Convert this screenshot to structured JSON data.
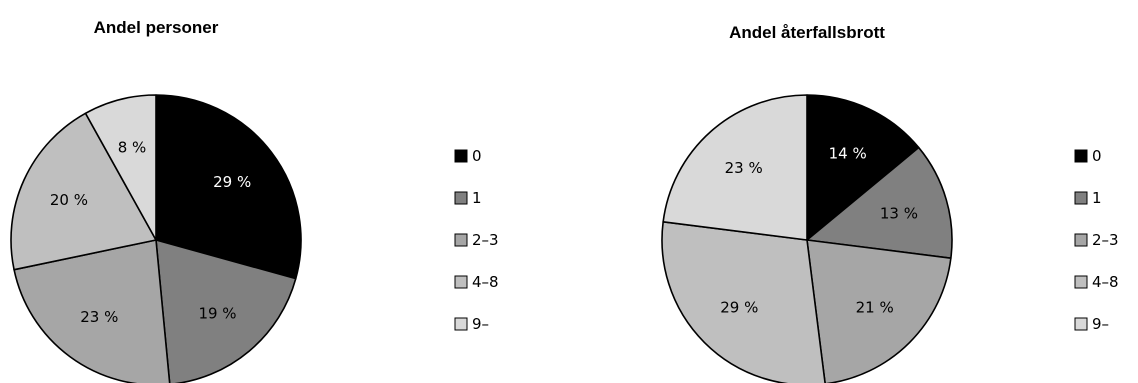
{
  "chart_data": [
    {
      "type": "pie",
      "title": "Andel personer",
      "categories": [
        "0",
        "1",
        "2–3",
        "4–8",
        "9–"
      ],
      "values": [
        29,
        19,
        23,
        20,
        8
      ],
      "data_labels": [
        "29 %",
        "19 %",
        "23 %",
        "20 %",
        "8 %"
      ],
      "colors": [
        "#000000",
        "#808080",
        "#a6a6a6",
        "#bfbfbf",
        "#d9d9d9"
      ],
      "legend_placement": "right"
    },
    {
      "type": "pie",
      "title": "Andel återfallsbrott",
      "categories": [
        "0",
        "1",
        "2–3",
        "4–8",
        "9–"
      ],
      "values": [
        14,
        13,
        21,
        29,
        23
      ],
      "data_labels": [
        "14 %",
        "13 %",
        "21 %",
        "29 %",
        "23 %"
      ],
      "colors": [
        "#000000",
        "#808080",
        "#a6a6a6",
        "#bfbfbf",
        "#d9d9d9"
      ],
      "legend_placement": "right"
    }
  ]
}
